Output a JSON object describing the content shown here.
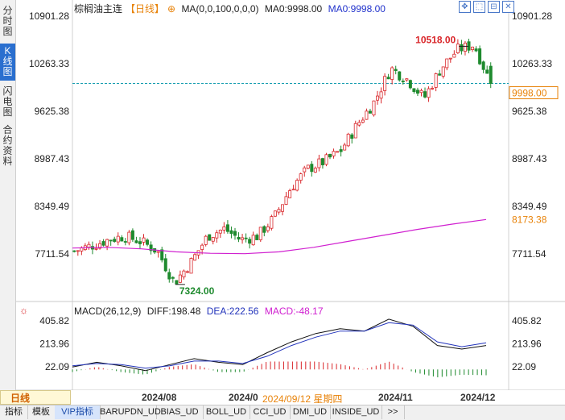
{
  "side_tabs": [
    {
      "label": "分\n时\n图",
      "active": false
    },
    {
      "label": "K\n线\n图",
      "active": true
    },
    {
      "label": "闪\n电\n图",
      "active": false
    },
    {
      "label": "合\n约\n资\n料",
      "active": false
    }
  ],
  "header": {
    "instrument": "棕榈油主连",
    "period": "【日线】",
    "ma_params": "MA(0,0,100,0,0,0)",
    "ma0_label": "MA0:9998.00",
    "ma0_blue_label": "MA0:9998.00"
  },
  "toolbar_icons": [
    "move-icon",
    "expand-icon",
    "collapse-icon",
    "close-icon"
  ],
  "price_axis": {
    "ticks": [
      "10901.28",
      "10263.33",
      "9625.38",
      "8987.43",
      "8349.49",
      "7711.54"
    ],
    "current_price_label": "9998.00",
    "ma_value_label": "8173.38"
  },
  "annotations": {
    "high_label": "10518.00",
    "low_label": "7324.00"
  },
  "macd": {
    "title": "MACD(26,12,9)",
    "diff": "DIFF:198.48",
    "dea": "DEA:222.56",
    "macd": "MACD:-48.17",
    "ticks": [
      "405.82",
      "213.96",
      "22.09"
    ]
  },
  "x_axis": {
    "labels": [
      "2024/08",
      "2024/0",
      "2024/11",
      "2024/12"
    ],
    "crosshair_date": "2024/09/12 星期四"
  },
  "period_tab": "日线",
  "bottom_tabs": [
    "指标",
    "模板",
    "VIP指标",
    "BARUPDN_UD",
    "BIAS_UD",
    "BOLL_UD",
    "CCI_UD",
    "DMI_UD",
    "INSIDE_UD",
    ">>"
  ],
  "colors": {
    "up": "#d9262a",
    "down": "#1e8a2e",
    "ma": "#d020d0",
    "diff_line": "#111111",
    "dea_line": "#2233bb",
    "dash_line": "#169eb0",
    "accent": "#2a6fcf",
    "orange": "#e8830a"
  },
  "chart_data": {
    "type": "candlestick",
    "y_axis_ticks": [
      10901.28,
      10263.33,
      9625.38,
      8987.43,
      8349.49,
      7711.54
    ],
    "high": 10518.0,
    "low": 7324.0,
    "last_close": 9998.0,
    "ma_last": 8173.38,
    "ma_path": [
      7790,
      7800,
      7780,
      7740,
      7720,
      7715,
      7740,
      7800,
      7880,
      7960,
      8040,
      8110,
      8173
    ],
    "price_path": [
      7750,
      7820,
      7900,
      7950,
      7880,
      7750,
      7324,
      7600,
      7950,
      8050,
      7900,
      7950,
      8200,
      8600,
      8850,
      8950,
      9100,
      9450,
      9750,
      10200,
      10050,
      9800,
      10200,
      10450,
      10518,
      9998
    ],
    "macd_panel": {
      "ticks": [
        405.82,
        213.96,
        22.09
      ],
      "diff_path": [
        20,
        60,
        30,
        -10,
        40,
        90,
        60,
        40,
        140,
        230,
        300,
        340,
        320,
        420,
        360,
        200,
        170,
        200
      ],
      "dea_path": [
        30,
        50,
        40,
        10,
        30,
        70,
        70,
        50,
        110,
        200,
        270,
        320,
        320,
        390,
        370,
        230,
        190,
        222
      ],
      "last_diff": 198.48,
      "last_dea": 222.56,
      "last_macd": -48.17
    }
  }
}
